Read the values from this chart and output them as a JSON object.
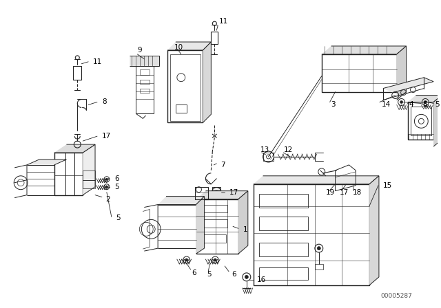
{
  "bg_color": "#ffffff",
  "line_color": "#222222",
  "diagram_id": "00005287",
  "figsize": [
    6.4,
    4.48
  ],
  "dpi": 100,
  "label_color": "#000000",
  "id_color": "#555555"
}
